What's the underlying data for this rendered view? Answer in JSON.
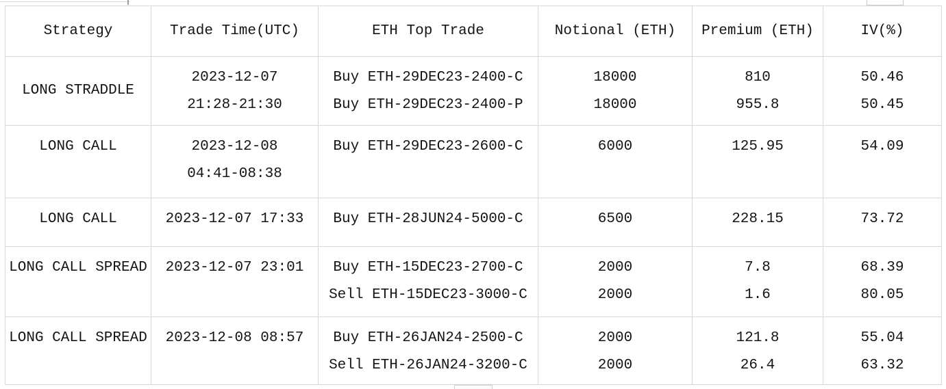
{
  "table": {
    "headers": [
      "Strategy",
      "Trade Time(UTC)",
      "ETH Top Trade",
      "Notional (ETH)",
      "Premium (ETH)",
      "IV(%)"
    ],
    "rows": [
      {
        "strategy": "LONG STRADDLE",
        "strategy_valign": "middle",
        "time_lines": [
          "2023-12-07",
          "21:28-21:30"
        ],
        "trades": [
          {
            "trade": "Buy ETH-29DEC23-2400-C",
            "notional": "18000",
            "premium": "810",
            "iv": "50.46"
          },
          {
            "trade": "Buy ETH-29DEC23-2400-P",
            "notional": "18000",
            "premium": "955.8",
            "iv": "50.45"
          }
        ]
      },
      {
        "strategy": "LONG CALL",
        "strategy_valign": "top",
        "time_lines": [
          "2023-12-08",
          "04:41-08:38"
        ],
        "trades": [
          {
            "trade": "Buy ETH-29DEC23-2600-C",
            "notional": "6000",
            "premium": "125.95",
            "iv": "54.09"
          }
        ]
      },
      {
        "strategy": "LONG CALL",
        "strategy_valign": "top",
        "time_lines": [
          "2023-12-07 17:33"
        ],
        "trades": [
          {
            "trade": "Buy ETH-28JUN24-5000-C",
            "notional": "6500",
            "premium": "228.15",
            "iv": "73.72"
          }
        ]
      },
      {
        "strategy": "LONG CALL SPREAD",
        "strategy_valign": "top",
        "time_lines": [
          "2023-12-07 23:01"
        ],
        "trades": [
          {
            "trade": "Buy ETH-15DEC23-2700-C",
            "notional": "2000",
            "premium": "7.8",
            "iv": "68.39"
          },
          {
            "trade": "Sell ETH-15DEC23-3000-C",
            "notional": "2000",
            "premium": "1.6",
            "iv": "80.05"
          }
        ]
      },
      {
        "strategy": "LONG CALL SPREAD",
        "strategy_valign": "top",
        "time_lines": [
          "2023-12-08 08:57"
        ],
        "trades": [
          {
            "trade": "Buy ETH-26JAN24-2500-C",
            "notional": "2000",
            "premium": "121.8",
            "iv": "55.04"
          },
          {
            "trade": "Sell ETH-26JAN24-3200-C",
            "notional": "2000",
            "premium": "26.4",
            "iv": "63.32"
          }
        ]
      }
    ]
  },
  "colors": {
    "grid_border": "#d8d8d8",
    "text": "#141414",
    "background": "#ffffff"
  }
}
